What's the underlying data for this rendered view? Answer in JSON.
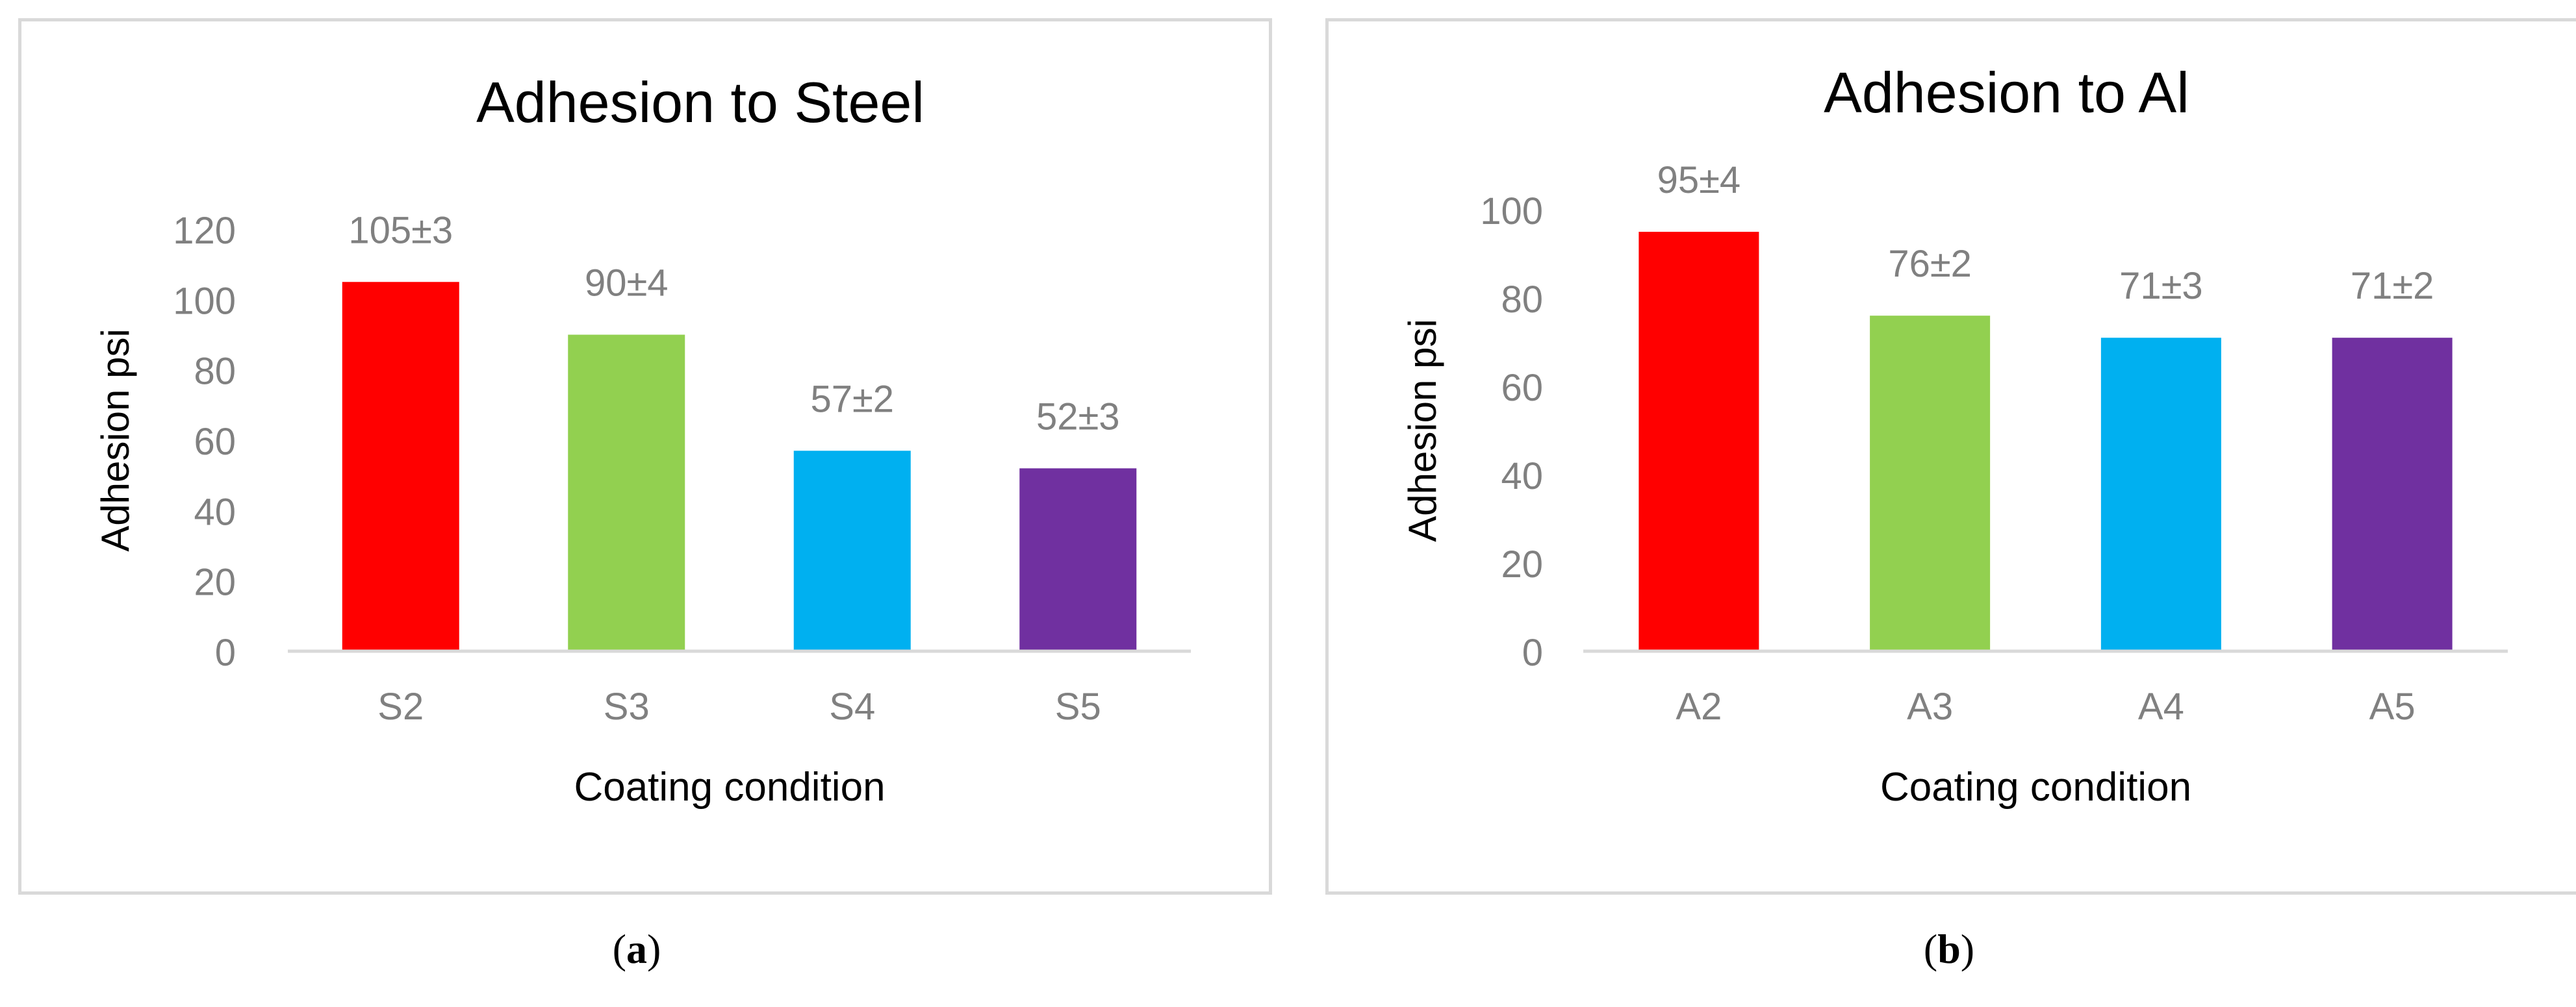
{
  "chart_data": [
    {
      "type": "bar",
      "title": "Adhesion to Steel",
      "xlabel": "Coating condition",
      "ylabel": "Adhesion psi",
      "categories": [
        "S2",
        "S3",
        "S4",
        "S5"
      ],
      "values": [
        105,
        90,
        57,
        52
      ],
      "data_labels": [
        "105±3",
        "90±4",
        "57±2",
        "52±3"
      ],
      "ylim": [
        0,
        120
      ],
      "yticks": [
        "0",
        "20",
        "40",
        "60",
        "80",
        "100",
        "120"
      ],
      "colors": [
        "#ff0000",
        "#92d050",
        "#00b0f0",
        "#7030a0"
      ],
      "grid": false,
      "legend": "none"
    },
    {
      "type": "bar",
      "title": "Adhesion to Al",
      "xlabel": "Coating condition",
      "ylabel": "Adhesion psi",
      "categories": [
        "A2",
        "A3",
        "A4",
        "A5"
      ],
      "values": [
        95,
        76,
        71,
        71
      ],
      "data_labels": [
        "95±4",
        "76±2",
        "71±3",
        "71±2"
      ],
      "ylim": [
        0,
        100
      ],
      "yticks": [
        "0",
        "20",
        "40",
        "60",
        "80",
        "100"
      ],
      "colors": [
        "#ff0000",
        "#92d050",
        "#00b0f0",
        "#7030a0"
      ],
      "grid": false,
      "legend": "none"
    }
  ],
  "subfigure_labels": {
    "a": {
      "open": "(",
      "letter": "a",
      "close": ")"
    },
    "b": {
      "open": "(",
      "letter": "b",
      "close": ")"
    }
  },
  "colors": {
    "axis_text": "#808080",
    "title_text": "#000000",
    "axis_line": "#d9d9d9"
  }
}
